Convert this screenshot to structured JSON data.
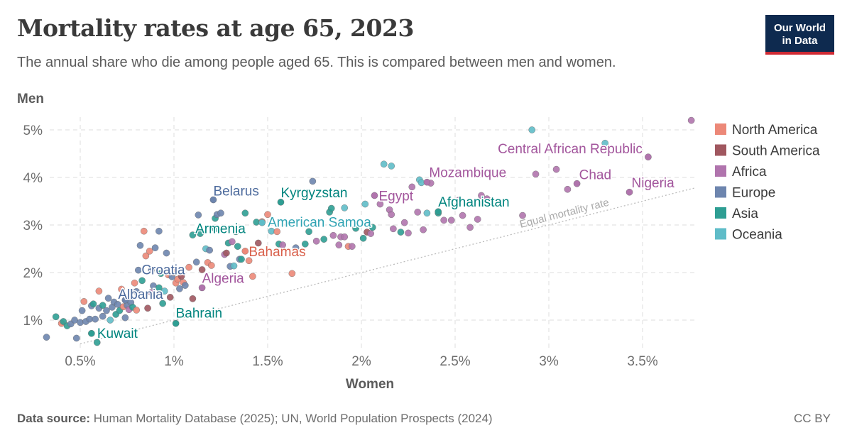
{
  "title": "Mortality rates at age 65, 2023",
  "subtitle": "The annual share who die among people aged 65. This is compared between men and women.",
  "logo": {
    "line1": "Our World",
    "line2": "in Data"
  },
  "footer": {
    "source_label": "Data source:",
    "source_text": " Human Mortality Database (2025); UN, World Population Prospects (2024)",
    "license": "CC BY"
  },
  "chart_data": {
    "type": "scatter",
    "xlabel": "Women",
    "ylabel": "Men",
    "xlim": [
      0.3,
      3.8
    ],
    "ylim": [
      0.5,
      5.2
    ],
    "xticks": [
      0.5,
      1,
      1.5,
      2,
      2.5,
      3,
      3.5
    ],
    "xtick_labels": [
      "0.5%",
      "1%",
      "1.5%",
      "2%",
      "2.5%",
      "3%",
      "3.5%"
    ],
    "yticks": [
      1,
      2,
      3,
      4,
      5
    ],
    "ytick_labels": [
      "1%",
      "2%",
      "3%",
      "4%",
      "5%"
    ],
    "grid": true,
    "legend_position": "right",
    "reference_line": {
      "label": "Equal mortality rate",
      "slope": 1
    },
    "regions": [
      {
        "key": "NA",
        "name": "North America",
        "color": "#ec8878",
        "label_color": "#d9604b"
      },
      {
        "key": "SA",
        "name": "South America",
        "color": "#a0575f",
        "label_color": "#8c3a45"
      },
      {
        "key": "AF",
        "name": "Africa",
        "color": "#b074ad",
        "label_color": "#a2559c"
      },
      {
        "key": "EU",
        "name": "Europe",
        "color": "#6d85ae",
        "label_color": "#4c6a9c"
      },
      {
        "key": "AS",
        "name": "Asia",
        "color": "#2e9e93",
        "label_color": "#00847e"
      },
      {
        "key": "OC",
        "name": "Oceania",
        "color": "#5fbcc8",
        "label_color": "#2fa3b3"
      }
    ],
    "labeled_points": [
      {
        "name": "Kuwait",
        "x": 0.56,
        "y": 0.72,
        "region": "AS"
      },
      {
        "name": "Albania",
        "x": 0.74,
        "y": 1.42,
        "region": "EU"
      },
      {
        "name": "Bahrain",
        "x": 1.01,
        "y": 0.93,
        "region": "AS"
      },
      {
        "name": "Croatia",
        "x": 0.88,
        "y": 2.05,
        "region": "EU"
      },
      {
        "name": "Algeria",
        "x": 1.15,
        "y": 1.68,
        "region": "AF"
      },
      {
        "name": "Bahamas",
        "x": 1.38,
        "y": 2.45,
        "region": "NA"
      },
      {
        "name": "Armenia",
        "x": 1.22,
        "y": 2.92,
        "region": "AS"
      },
      {
        "name": "Belarus",
        "x": 1.21,
        "y": 3.53,
        "region": "EU"
      },
      {
        "name": "American Samoa",
        "x": 1.47,
        "y": 3.05,
        "region": "OC"
      },
      {
        "name": "Kyrgyzstan",
        "x": 1.57,
        "y": 3.48,
        "region": "AS"
      },
      {
        "name": "Egypt",
        "x": 2.07,
        "y": 3.62,
        "region": "AF"
      },
      {
        "name": "Afghanistan",
        "x": 2.41,
        "y": 3.28,
        "region": "AS"
      },
      {
        "name": "Mozambique",
        "x": 2.35,
        "y": 3.9,
        "region": "AF"
      },
      {
        "name": "Central African Republic",
        "x": 3.53,
        "y": 4.43,
        "region": "AF"
      },
      {
        "name": "Chad",
        "x": 3.15,
        "y": 3.87,
        "region": "AF"
      },
      {
        "name": "Nigeria",
        "x": 3.43,
        "y": 3.69,
        "region": "AF"
      }
    ],
    "points": [
      [
        0.32,
        0.64,
        "EU"
      ],
      [
        0.37,
        1.07,
        "AS"
      ],
      [
        0.4,
        0.93,
        "NA"
      ],
      [
        0.41,
        0.97,
        "AS"
      ],
      [
        0.43,
        0.88,
        "AS"
      ],
      [
        0.45,
        0.92,
        "EU"
      ],
      [
        0.47,
        1.0,
        "EU"
      ],
      [
        0.48,
        0.62,
        "EU"
      ],
      [
        0.5,
        0.95,
        "EU"
      ],
      [
        0.51,
        1.2,
        "EU"
      ],
      [
        0.52,
        1.39,
        "NA"
      ],
      [
        0.53,
        0.97,
        "EU"
      ],
      [
        0.55,
        1.02,
        "EU"
      ],
      [
        0.56,
        1.3,
        "EU"
      ],
      [
        0.57,
        1.34,
        "AS"
      ],
      [
        0.58,
        1.02,
        "EU"
      ],
      [
        0.59,
        0.53,
        "AS"
      ],
      [
        0.6,
        1.61,
        "NA"
      ],
      [
        0.6,
        1.25,
        "EU"
      ],
      [
        0.62,
        1.31,
        "AS"
      ],
      [
        0.62,
        1.08,
        "EU"
      ],
      [
        0.64,
        1.2,
        "EU"
      ],
      [
        0.65,
        1.46,
        "EU"
      ],
      [
        0.66,
        1.0,
        "OC"
      ],
      [
        0.67,
        1.27,
        "EU"
      ],
      [
        0.68,
        1.38,
        "EU"
      ],
      [
        0.69,
        1.12,
        "AS"
      ],
      [
        0.7,
        1.33,
        "EU"
      ],
      [
        0.71,
        1.2,
        "AS"
      ],
      [
        0.72,
        1.65,
        "NA"
      ],
      [
        0.73,
        1.28,
        "NA"
      ],
      [
        0.74,
        1.05,
        "EU"
      ],
      [
        0.75,
        1.31,
        "EU"
      ],
      [
        0.76,
        1.22,
        "AF"
      ],
      [
        0.77,
        1.37,
        "EU"
      ],
      [
        0.78,
        1.27,
        "AS"
      ],
      [
        0.79,
        1.78,
        "NA"
      ],
      [
        0.8,
        1.21,
        "NA"
      ],
      [
        0.8,
        1.6,
        "EU"
      ],
      [
        0.81,
        2.05,
        "EU"
      ],
      [
        0.82,
        2.57,
        "EU"
      ],
      [
        0.83,
        1.83,
        "AS"
      ],
      [
        0.84,
        2.87,
        "NA"
      ],
      [
        0.85,
        2.35,
        "NA"
      ],
      [
        0.86,
        1.25,
        "SA"
      ],
      [
        0.87,
        2.45,
        "NA"
      ],
      [
        0.88,
        1.58,
        "AF"
      ],
      [
        0.89,
        1.72,
        "EU"
      ],
      [
        0.9,
        2.52,
        "EU"
      ],
      [
        0.92,
        1.68,
        "AS"
      ],
      [
        0.92,
        2.87,
        "EU"
      ],
      [
        0.93,
        1.98,
        "AS"
      ],
      [
        0.94,
        1.35,
        "AS"
      ],
      [
        0.95,
        1.61,
        "OC"
      ],
      [
        0.96,
        2.41,
        "EU"
      ],
      [
        0.97,
        1.95,
        "NA"
      ],
      [
        0.98,
        1.48,
        "SA"
      ],
      [
        0.99,
        1.91,
        "EU"
      ],
      [
        1.0,
        2.0,
        "NA"
      ],
      [
        1.01,
        1.78,
        "NA"
      ],
      [
        1.02,
        1.86,
        "NA"
      ],
      [
        1.03,
        1.66,
        "EU"
      ],
      [
        1.04,
        1.92,
        "SA"
      ],
      [
        1.05,
        1.79,
        "NA"
      ],
      [
        1.06,
        1.73,
        "EU"
      ],
      [
        1.08,
        2.11,
        "NA"
      ],
      [
        1.1,
        1.45,
        "SA"
      ],
      [
        1.1,
        2.79,
        "AS"
      ],
      [
        1.12,
        2.22,
        "EU"
      ],
      [
        1.13,
        3.21,
        "EU"
      ],
      [
        1.14,
        2.82,
        "AS"
      ],
      [
        1.15,
        2.06,
        "SA"
      ],
      [
        1.17,
        2.5,
        "OC"
      ],
      [
        1.18,
        2.21,
        "NA"
      ],
      [
        1.19,
        2.47,
        "EU"
      ],
      [
        1.2,
        2.15,
        "NA"
      ],
      [
        1.22,
        3.14,
        "AS"
      ],
      [
        1.23,
        3.22,
        "EU"
      ],
      [
        1.25,
        3.25,
        "EU"
      ],
      [
        1.27,
        2.38,
        "AF"
      ],
      [
        1.28,
        2.41,
        "SA"
      ],
      [
        1.29,
        2.62,
        "AS"
      ],
      [
        1.3,
        2.13,
        "EU"
      ],
      [
        1.31,
        2.65,
        "AF"
      ],
      [
        1.32,
        2.14,
        "OC"
      ],
      [
        1.33,
        2.86,
        "AS"
      ],
      [
        1.34,
        2.55,
        "AS"
      ],
      [
        1.35,
        2.28,
        "EU"
      ],
      [
        1.36,
        2.28,
        "AS"
      ],
      [
        1.38,
        3.25,
        "AS"
      ],
      [
        1.4,
        2.25,
        "NA"
      ],
      [
        1.42,
        1.92,
        "NA"
      ],
      [
        1.44,
        3.06,
        "AS"
      ],
      [
        1.45,
        2.62,
        "SA"
      ],
      [
        1.47,
        3.07,
        "NA"
      ],
      [
        1.5,
        3.22,
        "NA"
      ],
      [
        1.52,
        2.87,
        "OC"
      ],
      [
        1.55,
        2.86,
        "NA"
      ],
      [
        1.56,
        2.6,
        "AS"
      ],
      [
        1.58,
        2.58,
        "AF"
      ],
      [
        1.63,
        1.98,
        "NA"
      ],
      [
        1.65,
        2.52,
        "EU"
      ],
      [
        1.7,
        2.6,
        "AS"
      ],
      [
        1.72,
        2.86,
        "AS"
      ],
      [
        1.74,
        3.92,
        "EU"
      ],
      [
        1.76,
        2.66,
        "AF"
      ],
      [
        1.8,
        2.7,
        "AS"
      ],
      [
        1.83,
        3.27,
        "AS"
      ],
      [
        1.84,
        3.35,
        "AS"
      ],
      [
        1.85,
        2.78,
        "AF"
      ],
      [
        1.88,
        2.58,
        "AF"
      ],
      [
        1.89,
        2.75,
        "AF"
      ],
      [
        1.91,
        3.36,
        "OC"
      ],
      [
        1.91,
        2.75,
        "AF"
      ],
      [
        1.93,
        2.55,
        "NA"
      ],
      [
        1.95,
        2.55,
        "AF"
      ],
      [
        1.97,
        2.93,
        "AS"
      ],
      [
        2.01,
        2.72,
        "AS"
      ],
      [
        2.02,
        3.44,
        "OC"
      ],
      [
        2.03,
        2.85,
        "SA"
      ],
      [
        2.05,
        2.82,
        "AF"
      ],
      [
        2.06,
        2.95,
        "AS"
      ],
      [
        2.1,
        3.44,
        "AF"
      ],
      [
        2.12,
        4.28,
        "OC"
      ],
      [
        2.15,
        3.32,
        "AF"
      ],
      [
        2.16,
        3.22,
        "AF"
      ],
      [
        2.16,
        4.24,
        "OC"
      ],
      [
        2.17,
        2.92,
        "AF"
      ],
      [
        2.21,
        2.85,
        "AS"
      ],
      [
        2.23,
        3.05,
        "AF"
      ],
      [
        2.25,
        2.83,
        "AF"
      ],
      [
        2.27,
        3.8,
        "AF"
      ],
      [
        2.3,
        3.27,
        "AF"
      ],
      [
        2.31,
        3.95,
        "OC"
      ],
      [
        2.32,
        3.89,
        "OC"
      ],
      [
        2.33,
        2.9,
        "AF"
      ],
      [
        2.35,
        3.25,
        "OC"
      ],
      [
        2.37,
        3.88,
        "AF"
      ],
      [
        2.41,
        3.25,
        "AS"
      ],
      [
        2.44,
        3.1,
        "AF"
      ],
      [
        2.48,
        3.1,
        "AF"
      ],
      [
        2.52,
        3.52,
        "AF"
      ],
      [
        2.54,
        3.2,
        "AF"
      ],
      [
        2.58,
        2.95,
        "AF"
      ],
      [
        2.62,
        3.12,
        "AF"
      ],
      [
        2.64,
        3.62,
        "AF"
      ],
      [
        2.67,
        3.55,
        "AF"
      ],
      [
        2.86,
        3.2,
        "AF"
      ],
      [
        2.91,
        5.0,
        "OC"
      ],
      [
        2.93,
        4.07,
        "AF"
      ],
      [
        3.04,
        4.17,
        "AF"
      ],
      [
        3.1,
        3.75,
        "AF"
      ],
      [
        3.3,
        4.72,
        "OC"
      ],
      [
        3.76,
        5.2,
        "AF"
      ]
    ]
  }
}
